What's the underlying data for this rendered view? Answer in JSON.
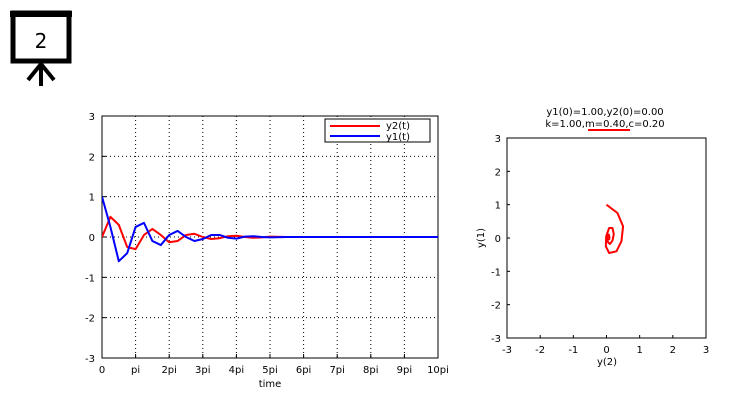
{
  "slide": {
    "number": "2",
    "icon": "presentation-board-icon"
  },
  "chart_data": [
    {
      "type": "line",
      "title": "",
      "xlabel": "time",
      "ylabel": "",
      "xlim_pi": [
        0,
        10
      ],
      "ylim": [
        -3,
        3
      ],
      "x_ticks": [
        "0",
        "pi",
        "2pi",
        "3pi",
        "4pi",
        "5pi",
        "6pi",
        "7pi",
        "8pi",
        "9pi",
        "10pi"
      ],
      "y_ticks": [
        "3",
        "2",
        "1",
        "0",
        "-1",
        "-2",
        "-3"
      ],
      "grid": true,
      "legend_position": "top-right",
      "series": [
        {
          "name": "y2(t)",
          "color": "#ff0000",
          "x_pi": [
            0,
            0.25,
            0.5,
            0.75,
            1,
            1.25,
            1.5,
            1.75,
            2,
            2.25,
            2.5,
            2.75,
            3,
            3.25,
            3.5,
            3.75,
            4,
            4.25,
            4.5,
            4.75,
            5,
            5.5,
            6,
            6.5,
            7,
            7.5,
            8,
            8.5,
            9,
            9.5,
            10
          ],
          "values": [
            0,
            0.5,
            0.3,
            -0.25,
            -0.3,
            0.05,
            0.2,
            0.05,
            -0.13,
            -0.1,
            0.05,
            0.08,
            0,
            -0.05,
            -0.03,
            0.02,
            0.03,
            0,
            -0.02,
            -0.01,
            0.01,
            0,
            0,
            0,
            0,
            0,
            0,
            0,
            0,
            0,
            0
          ]
        },
        {
          "name": "y1(t)",
          "color": "#0000ff",
          "x_pi": [
            0,
            0.25,
            0.5,
            0.75,
            1,
            1.25,
            1.5,
            1.75,
            2,
            2.25,
            2.5,
            2.75,
            3,
            3.25,
            3.5,
            3.75,
            4,
            4.25,
            4.5,
            4.75,
            5,
            5.5,
            6,
            6.5,
            7,
            7.5,
            8,
            8.5,
            9,
            9.5,
            10
          ],
          "values": [
            1,
            0.25,
            -0.6,
            -0.4,
            0.25,
            0.35,
            -0.1,
            -0.2,
            0.05,
            0.15,
            0,
            -0.1,
            -0.05,
            0.05,
            0.05,
            -0.02,
            -0.04,
            0.01,
            0.02,
            0,
            -0.01,
            0,
            0,
            0,
            0,
            0,
            0,
            0,
            0,
            0,
            0
          ]
        }
      ]
    },
    {
      "type": "line",
      "title": "y1(0)=1.00,y2(0)=0.00",
      "subtitle": "k=1.00,m=0.40,c=0.20",
      "xlabel": "y(2)",
      "ylabel": "y(1)",
      "xlim": [
        -3,
        3
      ],
      "ylim": [
        -3,
        3
      ],
      "x_ticks": [
        "-3",
        "-2",
        "-1",
        "0",
        "1",
        "2",
        "3"
      ],
      "y_ticks": [
        "3",
        "2",
        "1",
        "0",
        "-1",
        "-2",
        "-3"
      ],
      "grid": false,
      "series": [
        {
          "color": "#ff0000",
          "x": [
            0,
            0.33,
            0.5,
            0.45,
            0.3,
            0.08,
            -0.02,
            -0.01,
            0.08,
            0.18,
            0.22,
            0.18,
            0.1,
            0.04,
            0.02,
            0.04,
            0.07,
            0.09,
            0.08,
            0.06,
            0.05
          ],
          "y": [
            1,
            0.75,
            0.35,
            -0.1,
            -0.4,
            -0.45,
            -0.25,
            0.05,
            0.3,
            0.3,
            0.12,
            -0.08,
            -0.18,
            -0.12,
            0,
            0.1,
            0.1,
            0.02,
            -0.04,
            -0.04,
            0
          ]
        }
      ]
    }
  ]
}
